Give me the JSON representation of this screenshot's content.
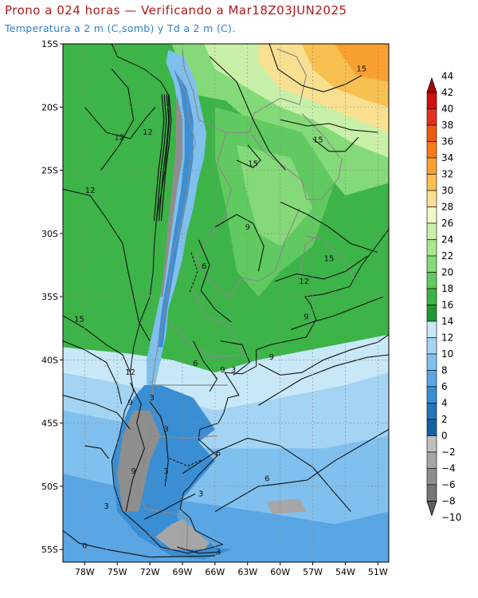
{
  "header": {
    "title": "Prono a 024 horas — Verificando a Mar18Z03JUN2025",
    "subtitle": "Temperatura a 2 m (C,somb) y Td a 2 m (C)."
  },
  "axes": {
    "lat_labels": [
      "15S",
      "20S",
      "25S",
      "30S",
      "35S",
      "40S",
      "45S",
      "50S",
      "55S"
    ],
    "lon_labels": [
      "78W",
      "75W",
      "72W",
      "69W",
      "66W",
      "63W",
      "60W",
      "57W",
      "54W",
      "51W"
    ]
  },
  "colorbar": {
    "levels": [
      "44",
      "42",
      "40",
      "38",
      "36",
      "34",
      "32",
      "30",
      "28",
      "26",
      "24",
      "22",
      "20",
      "18",
      "16",
      "14",
      "12",
      "10",
      "8",
      "6",
      "4",
      "2",
      "0",
      "−2",
      "−4",
      "−6",
      "−8",
      "−10"
    ],
    "colors": [
      "#b00000",
      "#d21010",
      "#e43020",
      "#f05a10",
      "#f67c18",
      "#f8a030",
      "#f8c050",
      "#f8e090",
      "#eef8c8",
      "#c8f0a8",
      "#a8e690",
      "#84da78",
      "#60ca60",
      "#3cb448",
      "#1e9a30",
      "#c8e8f8",
      "#a4d4f4",
      "#80c0ee",
      "#5aa6e4",
      "#3a8ed4",
      "#2276be",
      "#1462a6",
      "#bebebe",
      "#a6a6a6",
      "#8e8e8e",
      "#767676",
      "#5e5e5e"
    ]
  },
  "contour_labels": [
    {
      "text": "12",
      "lon": -72.2,
      "lat": -22.0
    },
    {
      "text": "12",
      "lon": -74.8,
      "lat": -22.4
    },
    {
      "text": "12",
      "lon": -77.5,
      "lat": -26.6
    },
    {
      "text": "15",
      "lon": -62.5,
      "lat": -24.5
    },
    {
      "text": "15",
      "lon": -56.5,
      "lat": -22.6
    },
    {
      "text": "15",
      "lon": -52.5,
      "lat": -17.0
    },
    {
      "text": "12",
      "lon": -57.8,
      "lat": -33.8
    },
    {
      "text": "15",
      "lon": -55.5,
      "lat": -32.0
    },
    {
      "text": "9",
      "lon": -63.0,
      "lat": -29.5
    },
    {
      "text": "6",
      "lon": -67.0,
      "lat": -32.6
    },
    {
      "text": "9",
      "lon": -57.6,
      "lat": -36.6
    },
    {
      "text": "9",
      "lon": -60.8,
      "lat": -39.8
    },
    {
      "text": "6",
      "lon": -67.8,
      "lat": -40.3
    },
    {
      "text": "9",
      "lon": -65.3,
      "lat": -40.8
    },
    {
      "text": "3",
      "lon": -64.3,
      "lat": -40.8
    },
    {
      "text": "15",
      "lon": -78.5,
      "lat": -36.8
    },
    {
      "text": "12",
      "lon": -73.8,
      "lat": -41.0
    },
    {
      "text": "9",
      "lon": -73.8,
      "lat": -43.4
    },
    {
      "text": "3",
      "lon": -71.8,
      "lat": -43.0
    },
    {
      "text": "3",
      "lon": -70.5,
      "lat": -45.5
    },
    {
      "text": "6",
      "lon": -65.7,
      "lat": -47.4
    },
    {
      "text": "3",
      "lon": -70.5,
      "lat": -48.8
    },
    {
      "text": "9",
      "lon": -73.5,
      "lat": -48.8
    },
    {
      "text": "6",
      "lon": -61.2,
      "lat": -49.4
    },
    {
      "text": "3",
      "lon": -67.3,
      "lat": -50.6
    },
    {
      "text": "3",
      "lon": -76.0,
      "lat": -51.6
    },
    {
      "text": "3",
      "lon": -65.7,
      "lat": -55.2
    },
    {
      "text": "0",
      "lon": -78.0,
      "lat": -54.7
    }
  ]
}
